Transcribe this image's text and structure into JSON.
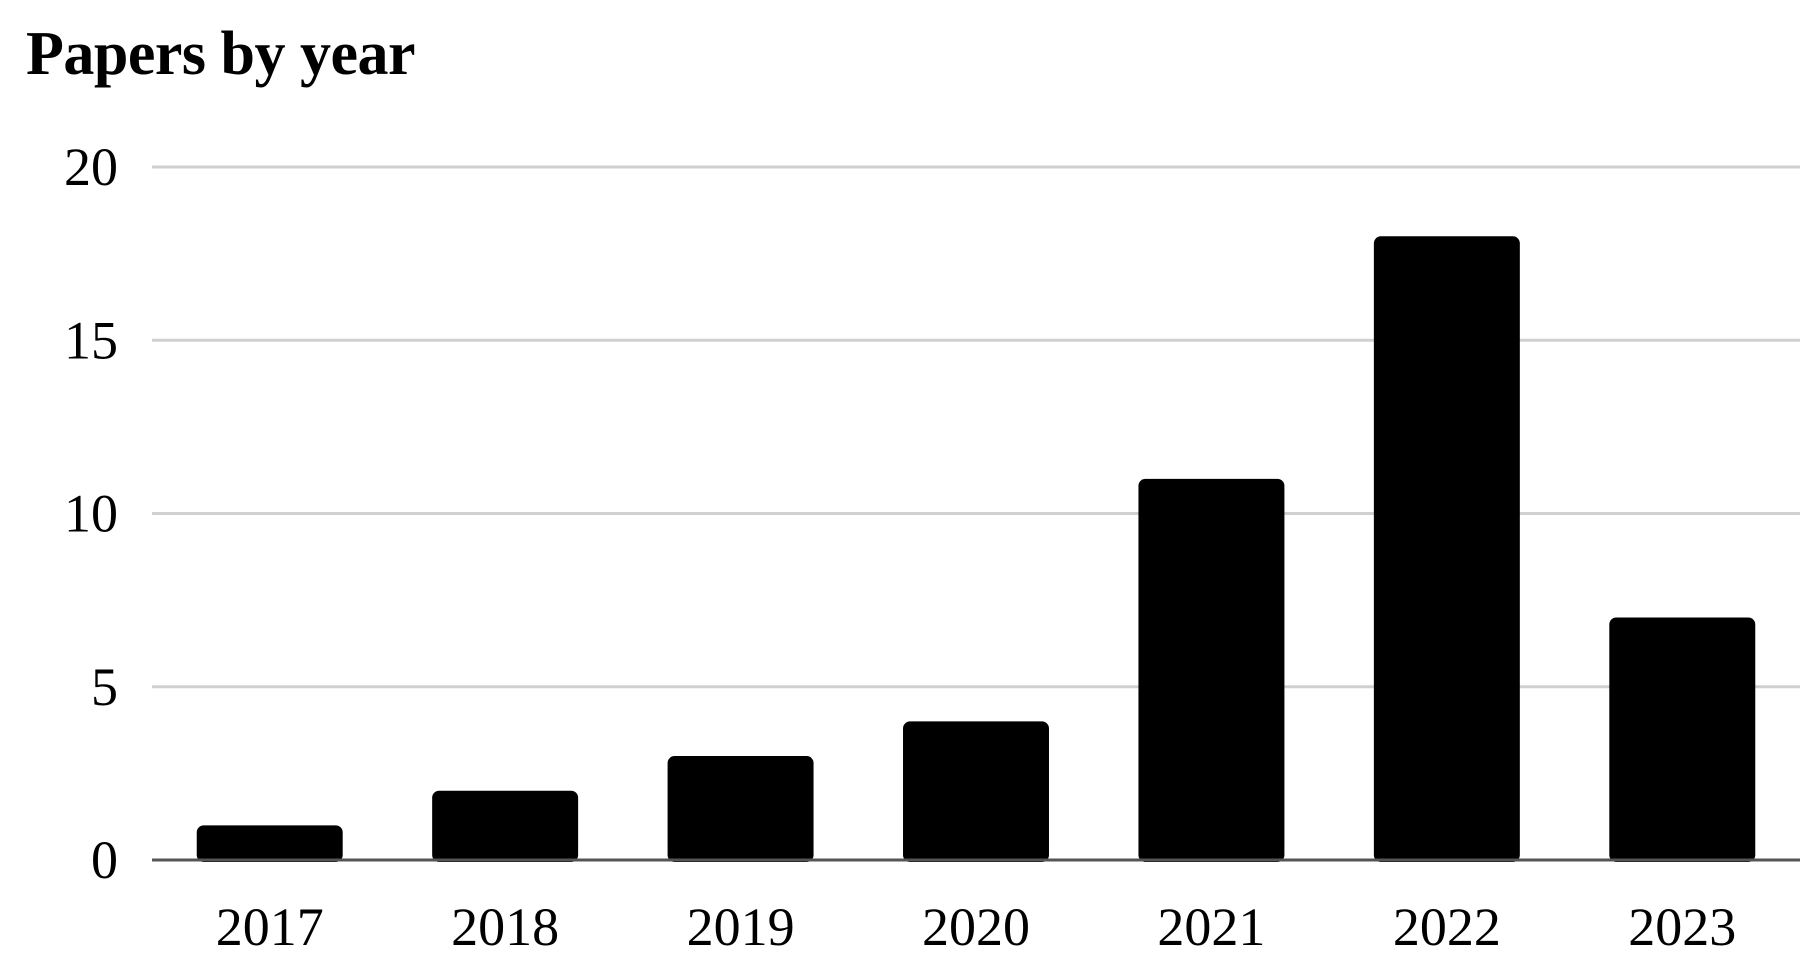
{
  "chart_data": {
    "type": "bar",
    "title": "Papers by year",
    "categories": [
      "2017",
      "2018",
      "2019",
      "2020",
      "2021",
      "2022",
      "2023"
    ],
    "values": [
      1,
      2,
      3,
      4,
      11,
      18,
      7
    ],
    "ylim": [
      0,
      20
    ],
    "yticks": [
      0,
      5,
      10,
      15,
      20
    ],
    "xlabel": "",
    "ylabel": "",
    "grid": true,
    "legend": "none",
    "bar_color": "#000000",
    "grid_color": "#d0d0d0",
    "axis_color": "#555555"
  }
}
